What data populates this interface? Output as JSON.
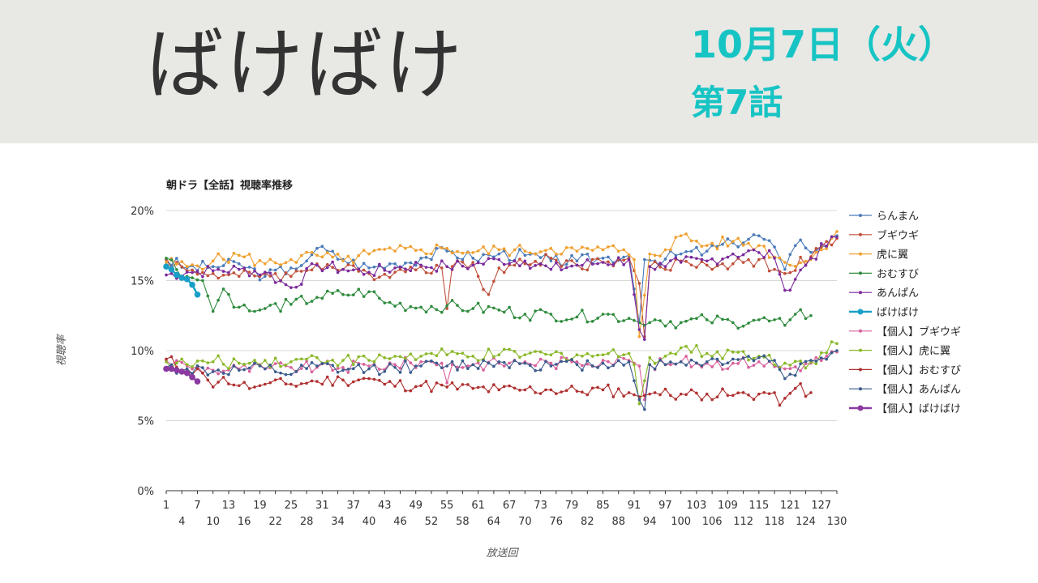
{
  "header": {
    "title": "ばけばけ",
    "date": "10月7日（火）",
    "episode": "第7話"
  },
  "chart_data": {
    "type": "line",
    "title": "朝ドラ【全話】視聴率推移",
    "xlabel": "放送回",
    "ylabel": "視聴率",
    "ylim": [
      0,
      20
    ],
    "yticks": [
      "0%",
      "5%",
      "10%",
      "15%",
      "20%"
    ],
    "xticks": [
      1,
      4,
      7,
      10,
      13,
      16,
      19,
      22,
      25,
      28,
      31,
      34,
      37,
      40,
      43,
      46,
      49,
      52,
      55,
      58,
      61,
      64,
      67,
      70,
      73,
      76,
      79,
      82,
      85,
      88,
      91,
      94,
      97,
      100,
      103,
      106,
      109,
      112,
      115,
      118,
      121,
      124,
      127,
      130
    ],
    "xlim": [
      1,
      130
    ],
    "grid": true,
    "legend_position": "right",
    "series": [
      {
        "name": "らんまん",
        "color": "#4a7ab8",
        "marker": "dot",
        "anchors": [
          [
            1,
            16.5
          ],
          [
            5,
            15.9
          ],
          [
            10,
            16.0
          ],
          [
            15,
            16.2
          ],
          [
            20,
            15.3
          ],
          [
            25,
            15.9
          ],
          [
            28,
            16.4
          ],
          [
            30,
            17.3
          ],
          [
            35,
            16.5
          ],
          [
            40,
            15.9
          ],
          [
            45,
            16.2
          ],
          [
            50,
            16.6
          ],
          [
            55,
            17.1
          ],
          [
            60,
            16.6
          ],
          [
            65,
            16.9
          ],
          [
            70,
            16.8
          ],
          [
            75,
            16.4
          ],
          [
            80,
            16.4
          ],
          [
            85,
            16.6
          ],
          [
            90,
            16.8
          ],
          [
            92,
            12.0
          ],
          [
            93,
            16.5
          ],
          [
            95,
            16.4
          ],
          [
            100,
            16.9
          ],
          [
            105,
            17.1
          ],
          [
            110,
            17.7
          ],
          [
            115,
            18.2
          ],
          [
            118,
            17.4
          ],
          [
            120,
            15.8
          ],
          [
            123,
            17.9
          ],
          [
            126,
            17.1
          ],
          [
            130,
            18.2
          ]
        ]
      },
      {
        "name": "ブギウギ",
        "color": "#c0503a",
        "marker": "dot",
        "anchors": [
          [
            1,
            16.5
          ],
          [
            5,
            15.7
          ],
          [
            10,
            15.5
          ],
          [
            15,
            15.3
          ],
          [
            20,
            15.5
          ],
          [
            25,
            15.3
          ],
          [
            30,
            16.2
          ],
          [
            35,
            15.8
          ],
          [
            40,
            15.5
          ],
          [
            45,
            15.6
          ],
          [
            50,
            16.0
          ],
          [
            54,
            15.9
          ],
          [
            55,
            13.0
          ],
          [
            56,
            16.0
          ],
          [
            60,
            16.3
          ],
          [
            63,
            14.0
          ],
          [
            65,
            15.9
          ],
          [
            70,
            16.2
          ],
          [
            75,
            16.6
          ],
          [
            80,
            16.1
          ],
          [
            85,
            16.3
          ],
          [
            90,
            16.6
          ],
          [
            92,
            14.8
          ],
          [
            93,
            11.0
          ],
          [
            94,
            16.0
          ],
          [
            97,
            15.8
          ],
          [
            100,
            16.4
          ],
          [
            105,
            16.1
          ],
          [
            110,
            16.2
          ],
          [
            115,
            16.5
          ],
          [
            118,
            15.8
          ],
          [
            120,
            15.5
          ],
          [
            125,
            16.7
          ],
          [
            130,
            18.0
          ]
        ]
      },
      {
        "name": "虎に翼",
        "color": "#f0a030",
        "marker": "dot",
        "anchors": [
          [
            1,
            16.3
          ],
          [
            5,
            16.0
          ],
          [
            10,
            16.4
          ],
          [
            15,
            16.8
          ],
          [
            20,
            16.2
          ],
          [
            25,
            16.5
          ],
          [
            30,
            16.8
          ],
          [
            35,
            16.4
          ],
          [
            40,
            16.9
          ],
          [
            45,
            17.1
          ],
          [
            50,
            17.2
          ],
          [
            55,
            17.3
          ],
          [
            60,
            17.0
          ],
          [
            65,
            17.2
          ],
          [
            70,
            17.1
          ],
          [
            75,
            17.3
          ],
          [
            80,
            17.1
          ],
          [
            85,
            17.2
          ],
          [
            89,
            17.2
          ],
          [
            91,
            16.5
          ],
          [
            92,
            11.0
          ],
          [
            94,
            16.9
          ],
          [
            97,
            17.2
          ],
          [
            100,
            18.2
          ],
          [
            105,
            17.5
          ],
          [
            110,
            17.8
          ],
          [
            115,
            17.5
          ],
          [
            120,
            16.3
          ],
          [
            125,
            16.5
          ],
          [
            130,
            18.5
          ]
        ]
      },
      {
        "name": "おむすび",
        "color": "#2e8b3c",
        "marker": "dot",
        "anchors": [
          [
            1,
            16.6
          ],
          [
            5,
            15.3
          ],
          [
            8,
            15.0
          ],
          [
            10,
            12.8
          ],
          [
            12,
            14.4
          ],
          [
            15,
            13.1
          ],
          [
            18,
            12.8
          ],
          [
            20,
            13.0
          ],
          [
            25,
            13.3
          ],
          [
            30,
            13.8
          ],
          [
            35,
            14.0
          ],
          [
            40,
            14.2
          ],
          [
            43,
            13.4
          ],
          [
            50,
            13.1
          ],
          [
            55,
            13.2
          ],
          [
            60,
            13.0
          ],
          [
            65,
            12.9
          ],
          [
            70,
            12.6
          ],
          [
            75,
            12.6
          ],
          [
            80,
            12.4
          ],
          [
            85,
            12.6
          ],
          [
            90,
            12.3
          ],
          [
            92,
            12.0
          ],
          [
            93,
            11.8
          ],
          [
            95,
            12.2
          ],
          [
            100,
            12.0
          ],
          [
            105,
            12.2
          ],
          [
            110,
            12.0
          ],
          [
            115,
            12.2
          ],
          [
            120,
            11.8
          ],
          [
            122,
            12.6
          ],
          [
            125,
            12.5
          ]
        ]
      },
      {
        "name": "あんぱん",
        "color": "#7b2a9c",
        "marker": "dot",
        "anchors": [
          [
            1,
            15.4
          ],
          [
            5,
            15.6
          ],
          [
            10,
            15.7
          ],
          [
            15,
            15.8
          ],
          [
            20,
            15.6
          ],
          [
            25,
            14.5
          ],
          [
            30,
            16.1
          ],
          [
            35,
            15.8
          ],
          [
            40,
            15.6
          ],
          [
            45,
            15.9
          ],
          [
            50,
            16.1
          ],
          [
            55,
            16.0
          ],
          [
            60,
            16.1
          ],
          [
            65,
            16.5
          ],
          [
            70,
            16.4
          ],
          [
            75,
            15.8
          ],
          [
            80,
            16.1
          ],
          [
            85,
            16.3
          ],
          [
            90,
            16.5
          ],
          [
            92,
            11.5
          ],
          [
            93,
            10.8
          ],
          [
            94,
            16.0
          ],
          [
            97,
            16.0
          ],
          [
            100,
            16.3
          ],
          [
            105,
            16.4
          ],
          [
            110,
            16.9
          ],
          [
            115,
            17.0
          ],
          [
            118,
            16.6
          ],
          [
            120,
            14.3
          ],
          [
            125,
            16.6
          ],
          [
            130,
            18.1
          ]
        ]
      },
      {
        "name": "ばけばけ",
        "color": "#1aa0c8",
        "marker": "big",
        "anchors": [
          [
            1,
            16.0
          ],
          [
            2,
            15.8
          ],
          [
            3,
            15.4
          ],
          [
            4,
            15.2
          ],
          [
            5,
            15.1
          ],
          [
            6,
            14.7
          ],
          [
            7,
            14.0
          ]
        ]
      },
      {
        "name": "【個人】ブギウギ",
        "color": "#d8609a",
        "marker": "dot",
        "anchors": [
          [
            1,
            9.3
          ],
          [
            5,
            8.9
          ],
          [
            10,
            8.6
          ],
          [
            15,
            8.7
          ],
          [
            20,
            8.7
          ],
          [
            25,
            8.8
          ],
          [
            30,
            8.8
          ],
          [
            35,
            8.8
          ],
          [
            40,
            8.9
          ],
          [
            45,
            9.0
          ],
          [
            50,
            9.2
          ],
          [
            54,
            9.1
          ],
          [
            55,
            7.7
          ],
          [
            56,
            9.0
          ],
          [
            60,
            9.0
          ],
          [
            65,
            9.1
          ],
          [
            70,
            9.2
          ],
          [
            75,
            9.1
          ],
          [
            80,
            9.2
          ],
          [
            85,
            9.3
          ],
          [
            90,
            9.3
          ],
          [
            92,
            8.9
          ],
          [
            93,
            6.5
          ],
          [
            94,
            9.0
          ],
          [
            97,
            9.0
          ],
          [
            100,
            9.2
          ],
          [
            105,
            9.1
          ],
          [
            110,
            9.1
          ],
          [
            115,
            9.2
          ],
          [
            120,
            8.7
          ],
          [
            125,
            9.1
          ],
          [
            130,
            9.9
          ]
        ]
      },
      {
        "name": "【個人】虎に翼",
        "color": "#8ab828",
        "marker": "dot",
        "anchors": [
          [
            1,
            9.2
          ],
          [
            5,
            9.0
          ],
          [
            10,
            9.2
          ],
          [
            15,
            9.1
          ],
          [
            20,
            9.3
          ],
          [
            25,
            9.2
          ],
          [
            30,
            9.5
          ],
          [
            35,
            9.3
          ],
          [
            40,
            9.3
          ],
          [
            45,
            9.6
          ],
          [
            50,
            9.6
          ],
          [
            55,
            9.7
          ],
          [
            60,
            9.6
          ],
          [
            65,
            9.7
          ],
          [
            70,
            9.7
          ],
          [
            75,
            9.7
          ],
          [
            80,
            9.7
          ],
          [
            85,
            9.7
          ],
          [
            90,
            9.8
          ],
          [
            91,
            9.0
          ],
          [
            92,
            6.2
          ],
          [
            94,
            9.5
          ],
          [
            97,
            9.6
          ],
          [
            100,
            10.2
          ],
          [
            105,
            9.8
          ],
          [
            110,
            9.9
          ],
          [
            115,
            9.6
          ],
          [
            120,
            9.1
          ],
          [
            125,
            9.2
          ],
          [
            130,
            10.5
          ]
        ]
      },
      {
        "name": "【個人】おむすび",
        "color": "#b03030",
        "marker": "dot",
        "anchors": [
          [
            1,
            9.4
          ],
          [
            5,
            8.6
          ],
          [
            8,
            8.4
          ],
          [
            10,
            7.4
          ],
          [
            12,
            8.1
          ],
          [
            15,
            7.5
          ],
          [
            18,
            7.4
          ],
          [
            20,
            7.6
          ],
          [
            25,
            7.6
          ],
          [
            30,
            7.8
          ],
          [
            35,
            7.9
          ],
          [
            40,
            8.0
          ],
          [
            43,
            7.6
          ],
          [
            50,
            7.5
          ],
          [
            55,
            7.4
          ],
          [
            60,
            7.3
          ],
          [
            65,
            7.2
          ],
          [
            70,
            7.2
          ],
          [
            75,
            7.2
          ],
          [
            80,
            7.1
          ],
          [
            85,
            7.2
          ],
          [
            90,
            7.0
          ],
          [
            92,
            6.7
          ],
          [
            93,
            6.8
          ],
          [
            95,
            7.0
          ],
          [
            100,
            6.9
          ],
          [
            105,
            6.9
          ],
          [
            110,
            6.8
          ],
          [
            115,
            6.9
          ],
          [
            118,
            7.0
          ],
          [
            119,
            6.1
          ],
          [
            120,
            6.6
          ],
          [
            122,
            7.3
          ],
          [
            125,
            7.0
          ]
        ]
      },
      {
        "name": "【個人】あんぱん",
        "color": "#3a5a8c",
        "marker": "dot",
        "anchors": [
          [
            1,
            8.8
          ],
          [
            5,
            8.7
          ],
          [
            10,
            8.5
          ],
          [
            15,
            8.6
          ],
          [
            20,
            8.7
          ],
          [
            25,
            8.3
          ],
          [
            30,
            8.9
          ],
          [
            35,
            8.6
          ],
          [
            40,
            8.7
          ],
          [
            45,
            8.8
          ],
          [
            50,
            8.9
          ],
          [
            55,
            8.9
          ],
          [
            60,
            9.0
          ],
          [
            65,
            9.2
          ],
          [
            70,
            9.1
          ],
          [
            75,
            8.9
          ],
          [
            80,
            9.0
          ],
          [
            85,
            9.1
          ],
          [
            90,
            9.2
          ],
          [
            92,
            6.5
          ],
          [
            93,
            5.8
          ],
          [
            94,
            9.0
          ],
          [
            97,
            9.0
          ],
          [
            100,
            9.2
          ],
          [
            105,
            9.2
          ],
          [
            110,
            9.4
          ],
          [
            115,
            9.5
          ],
          [
            118,
            9.3
          ],
          [
            120,
            8.0
          ],
          [
            125,
            9.3
          ],
          [
            130,
            10.0
          ]
        ]
      },
      {
        "name": "【個人】ばけばけ",
        "color": "#8a3aa0",
        "marker": "big",
        "anchors": [
          [
            1,
            8.7
          ],
          [
            2,
            8.7
          ],
          [
            3,
            8.6
          ],
          [
            4,
            8.5
          ],
          [
            5,
            8.4
          ],
          [
            6,
            8.1
          ],
          [
            7,
            7.8
          ]
        ]
      }
    ]
  }
}
